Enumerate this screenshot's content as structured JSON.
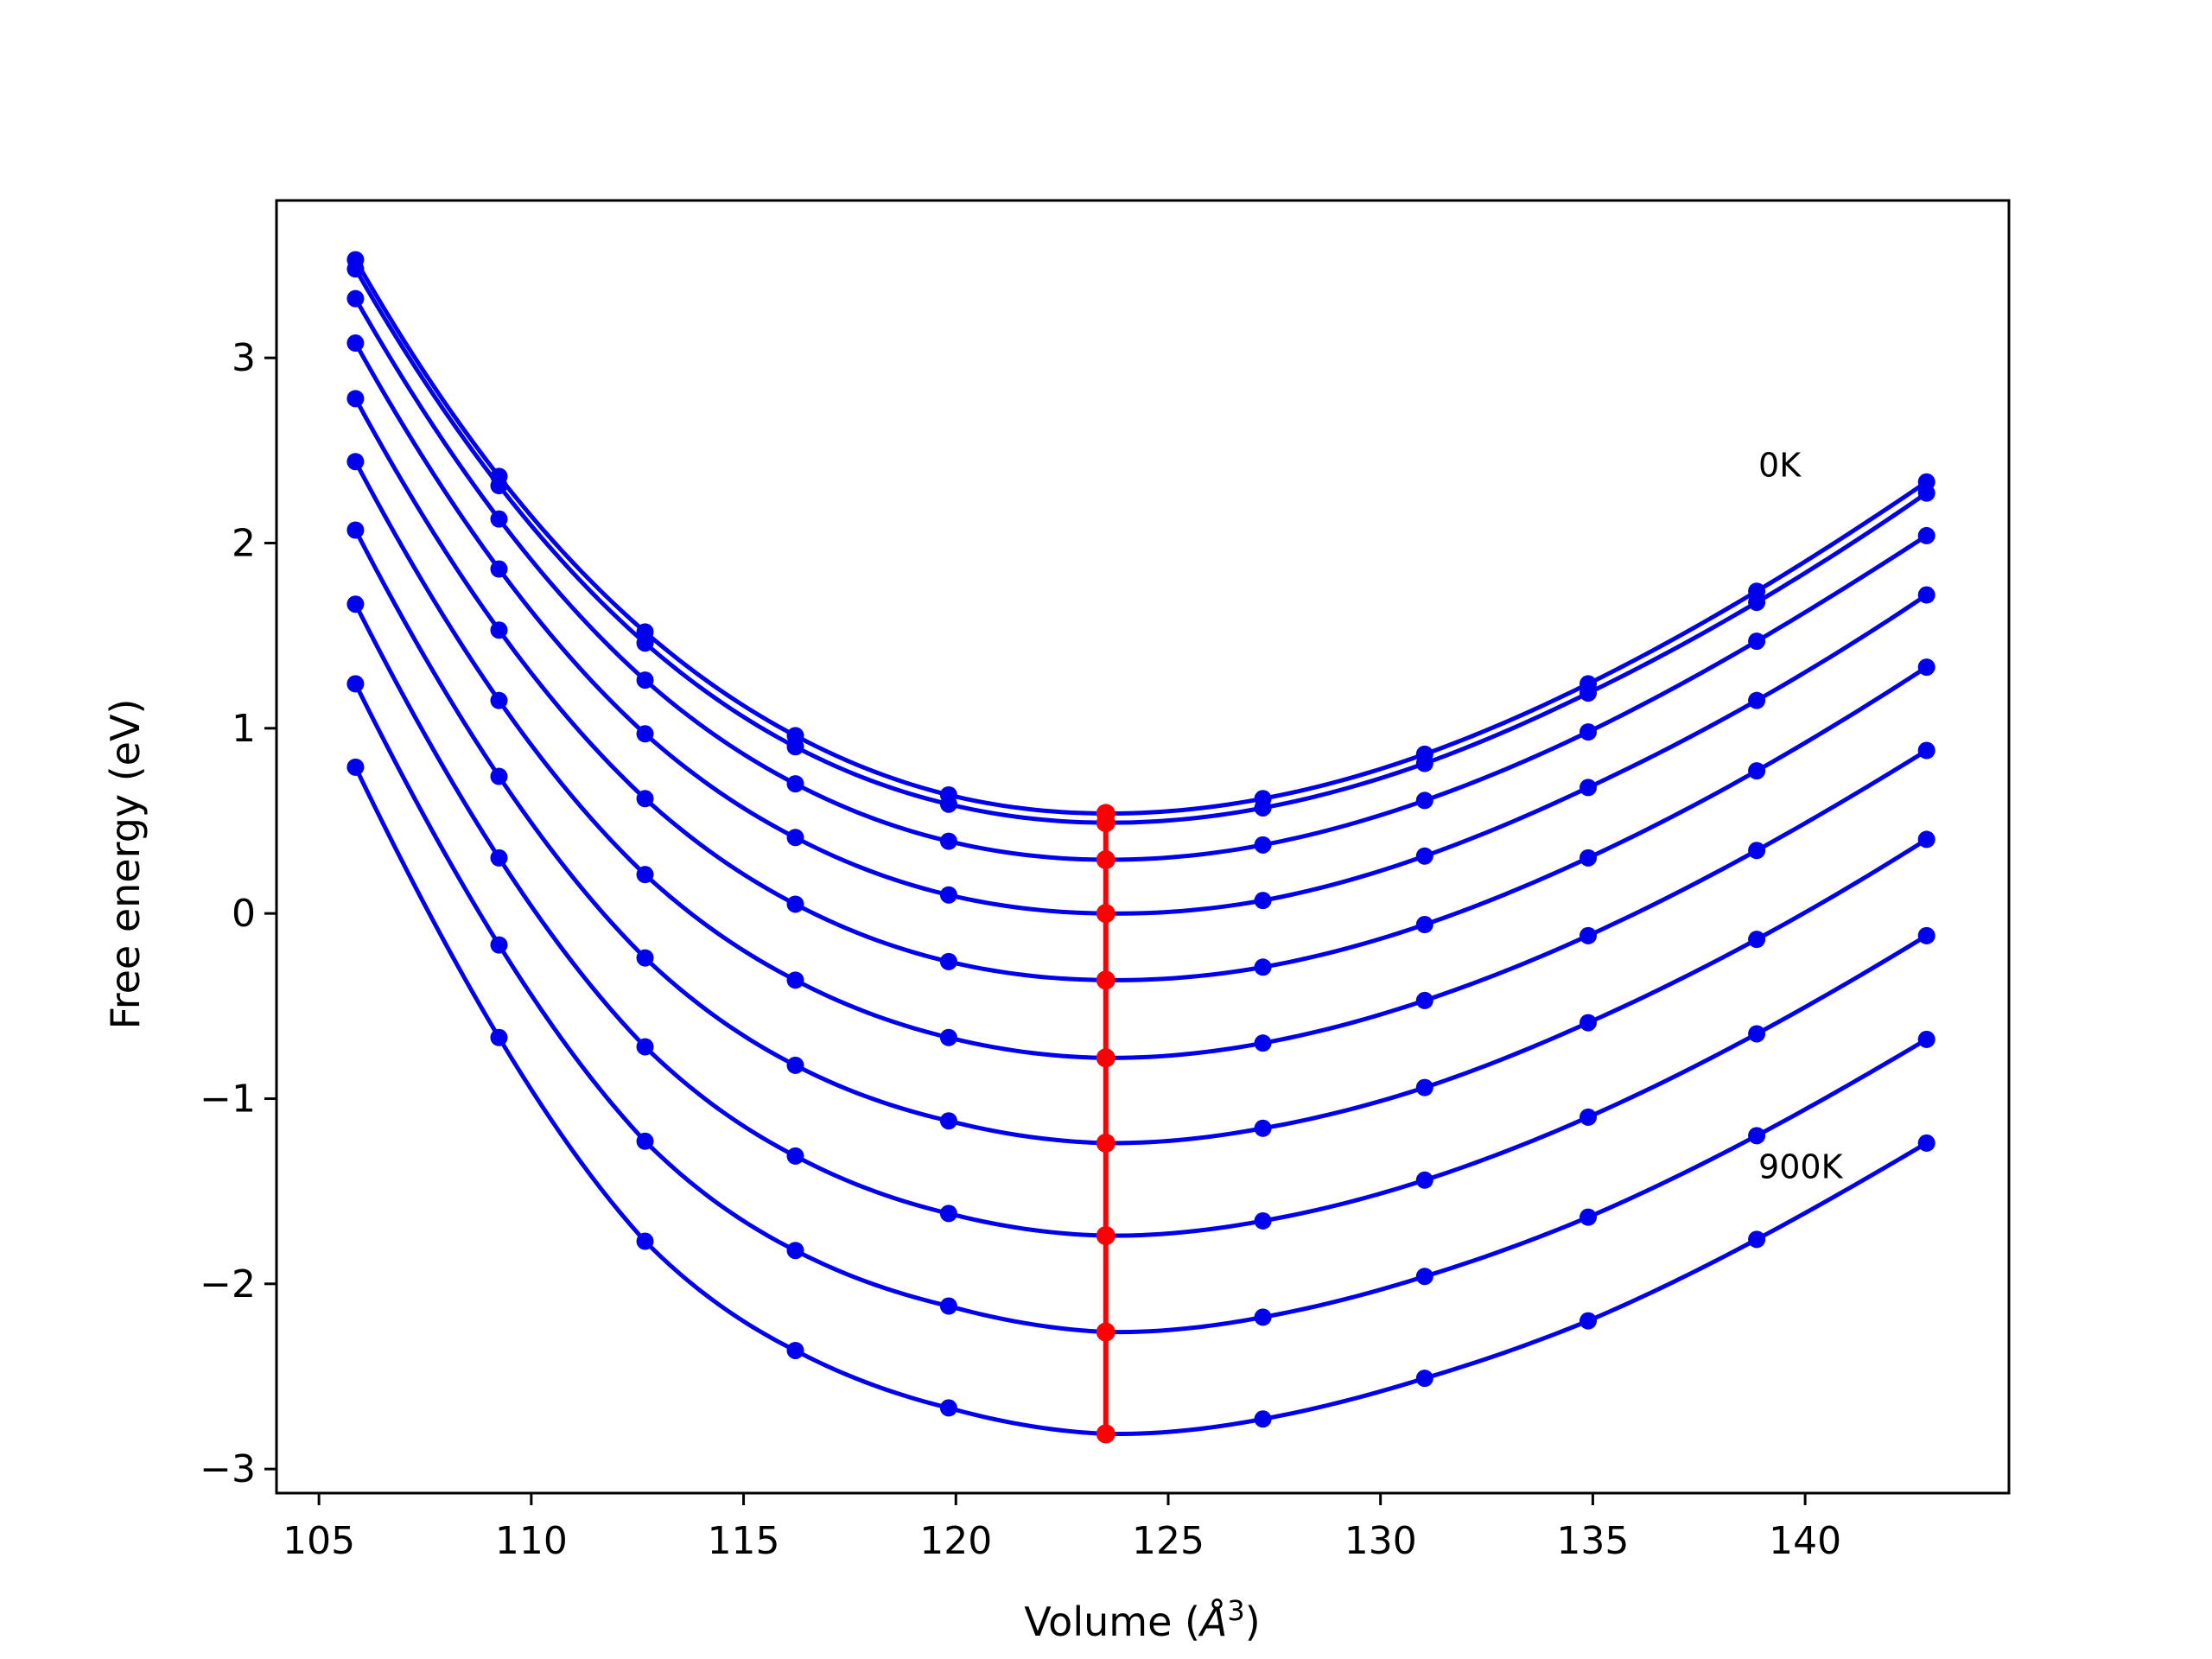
{
  "chart_data": {
    "type": "line",
    "title": "",
    "xlabel": "Volume (",
    "xlabel_symbol": "Å",
    "xlabel_exponent": "3",
    "xlabel_close": ")",
    "ylabel": "Free energy (eV)",
    "xlim": [
      104.0,
      144.8
    ],
    "ylim": [
      -3.13,
      3.85
    ],
    "xticks": [
      105,
      110,
      115,
      120,
      125,
      130,
      135,
      140
    ],
    "xtick_labels": [
      "105",
      "110",
      "115",
      "120",
      "125",
      "130",
      "135",
      "140"
    ],
    "yticks": [
      -3,
      -2,
      -1,
      0,
      1,
      2,
      3
    ],
    "ytick_labels": [
      "−3",
      "−2",
      "−1",
      "0",
      "1",
      "2",
      "3"
    ],
    "grid": false,
    "legend": "none",
    "x": [
      105.86,
      109.24,
      112.68,
      116.22,
      119.83,
      123.53,
      127.23,
      131.04,
      134.89,
      138.86,
      142.86
    ],
    "series": [
      {
        "values": [
          3.53,
          2.36,
          1.52,
          0.96,
          0.64,
          0.54,
          0.62,
          0.86,
          1.24,
          1.74,
          2.33
        ]
      },
      {
        "values": [
          3.48,
          2.31,
          1.46,
          0.9,
          0.59,
          0.49,
          0.57,
          0.81,
          1.19,
          1.68,
          2.27
        ]
      },
      {
        "values": [
          3.32,
          2.13,
          1.26,
          0.7,
          0.39,
          0.29,
          0.37,
          0.61,
          0.98,
          1.47,
          2.04
        ]
      },
      {
        "values": [
          3.08,
          1.86,
          0.97,
          0.41,
          0.1,
          0.0,
          0.07,
          0.31,
          0.68,
          1.15,
          1.72
        ]
      },
      {
        "values": [
          2.78,
          1.53,
          0.62,
          0.05,
          -0.26,
          -0.36,
          -0.29,
          -0.06,
          0.3,
          0.77,
          1.33
        ]
      },
      {
        "values": [
          2.44,
          1.15,
          0.21,
          -0.36,
          -0.67,
          -0.78,
          -0.7,
          -0.47,
          -0.12,
          0.34,
          0.88
        ]
      },
      {
        "values": [
          2.07,
          0.74,
          -0.24,
          -0.82,
          -1.12,
          -1.24,
          -1.16,
          -0.94,
          -0.59,
          -0.14,
          0.4
        ]
      },
      {
        "values": [
          1.67,
          0.3,
          -0.72,
          -1.31,
          -1.62,
          -1.74,
          -1.66,
          -1.44,
          -1.1,
          -0.65,
          -0.12
        ]
      },
      {
        "values": [
          1.24,
          -0.17,
          -1.23,
          -1.82,
          -2.12,
          -2.26,
          -2.18,
          -1.96,
          -1.64,
          -1.2,
          -0.68
        ]
      },
      {
        "values": [
          0.79,
          -0.67,
          -1.77,
          -2.36,
          -2.67,
          -2.81,
          -2.73,
          -2.51,
          -2.2,
          -1.76,
          -1.24
        ]
      }
    ],
    "equilibrium": {
      "x": [
        123.53,
        123.53,
        123.53,
        123.53,
        123.53,
        123.53,
        123.53,
        123.53,
        123.53,
        123.53
      ],
      "y": [
        0.54,
        0.49,
        0.29,
        0.0,
        -0.36,
        -0.78,
        -1.24,
        -1.74,
        -2.26,
        -2.81
      ]
    },
    "annotations": [
      {
        "text": "0K",
        "x": 138.9,
        "y": 2.36
      },
      {
        "text": "900K",
        "x": 138.9,
        "y": -1.43
      }
    ],
    "colors": {
      "curves": "#0000ee",
      "equilibrium": "#ff0000",
      "axes": "#000000"
    }
  }
}
